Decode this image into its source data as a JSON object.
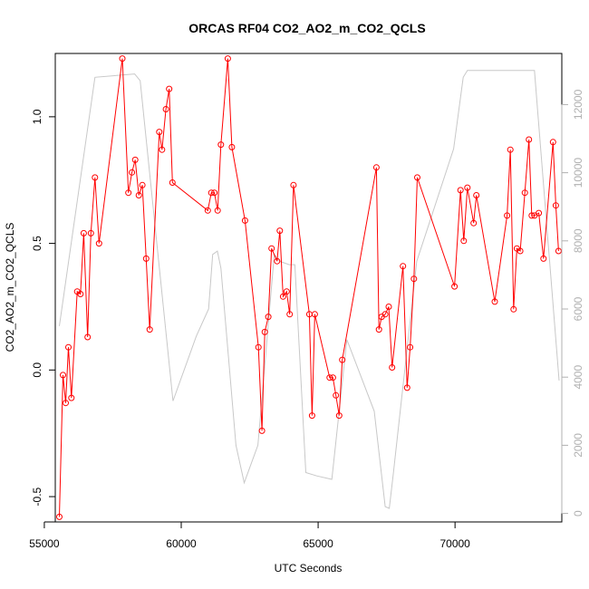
{
  "chart_data": {
    "type": "line",
    "title": "ORCAS RF04 CO2_AO2_m_CO2_QCLS",
    "xlabel": "UTC Seconds",
    "ylabel": "CO2_AO2_m_CO2_QCLS",
    "xlim": [
      55400,
      73900
    ],
    "ylim": [
      -0.6,
      1.25
    ],
    "y2lim": [
      -250,
      13500
    ],
    "x_ticks": [
      55000,
      60000,
      65000,
      70000
    ],
    "x_tick_labels": [
      "55000",
      "60000",
      "65000",
      "70000"
    ],
    "y_ticks": [
      -0.5,
      0.0,
      0.5,
      1.0
    ],
    "y_tick_labels": [
      "-0.5",
      "0.0",
      "0.5",
      "1.0"
    ],
    "y2_ticks": [
      0,
      2000,
      4000,
      6000,
      8000,
      10000,
      12000
    ],
    "y2_tick_labels": [
      "0",
      "2000",
      "4000",
      "6000",
      "8000",
      "10000",
      "12000"
    ],
    "grid": false,
    "series": [
      {
        "color": "#ff0000",
        "axis": "left",
        "x": [
          55550,
          55680,
          55780,
          55880,
          55990,
          56200,
          56320,
          56440,
          56580,
          56700,
          56850,
          57000,
          57850,
          58070,
          58200,
          58320,
          58450,
          58580,
          58720,
          58850,
          59200,
          59300,
          59440,
          59560,
          59680,
          60970,
          61100,
          61210,
          61330,
          61450,
          61700,
          61850,
          62330,
          62820,
          62950,
          63050,
          63180,
          63300,
          63500,
          63600,
          63720,
          63850,
          63960,
          64100,
          64680,
          64780,
          64880,
          65420,
          65540,
          65650,
          65770,
          65880,
          67130,
          67220,
          67320,
          67450,
          67580,
          67700,
          68100,
          68250,
          68360,
          68500,
          68620,
          69980,
          70200,
          70320,
          70450,
          70680,
          70780,
          71450,
          71900,
          72020,
          72140,
          72260,
          72380,
          72550,
          72700,
          72800,
          72900,
          73060,
          73230,
          73580,
          73680,
          73780
        ],
        "y": [
          -0.58,
          -0.02,
          -0.13,
          0.09,
          -0.11,
          0.31,
          0.3,
          0.54,
          0.13,
          0.54,
          0.76,
          0.5,
          1.23,
          0.7,
          0.78,
          0.83,
          0.69,
          0.73,
          0.44,
          0.16,
          0.94,
          0.87,
          1.03,
          1.11,
          0.74,
          0.63,
          0.7,
          0.7,
          0.63,
          0.89,
          1.23,
          0.88,
          0.59,
          0.09,
          -0.24,
          0.15,
          0.21,
          0.48,
          0.43,
          0.55,
          0.29,
          0.31,
          0.22,
          0.73,
          0.22,
          -0.18,
          0.22,
          -0.03,
          -0.03,
          -0.1,
          -0.18,
          0.04,
          0.8,
          0.16,
          0.21,
          0.22,
          0.25,
          0.01,
          0.41,
          -0.07,
          0.09,
          0.36,
          0.76,
          0.33,
          0.71,
          0.51,
          0.72,
          0.58,
          0.69,
          0.27,
          0.61,
          0.87,
          0.24,
          0.48,
          0.47,
          0.7,
          0.91,
          0.61,
          0.61,
          0.62,
          0.44,
          0.9,
          0.65,
          0.47
        ],
        "markers": "open-circle"
      },
      {
        "color": "#c8c8c8",
        "axis": "right",
        "x": [
          55550,
          56850,
          58300,
          58500,
          59700,
          60550,
          61000,
          61150,
          61320,
          61450,
          62000,
          62300,
          62800,
          63400,
          63600,
          63950,
          64150,
          64550,
          64950,
          65500,
          66050,
          67050,
          67450,
          67600,
          67750,
          68600,
          69950,
          70300,
          70450,
          72900,
          73800
        ],
        "y": [
          5500,
          12800,
          12900,
          12700,
          3300,
          5200,
          6000,
          7600,
          7700,
          7200,
          2000,
          900,
          2000,
          7600,
          7400,
          7300,
          7300,
          1200,
          1100,
          1000,
          5100,
          3000,
          200,
          150,
          1200,
          7400,
          10700,
          12800,
          13000,
          13000,
          3900
        ]
      }
    ]
  }
}
